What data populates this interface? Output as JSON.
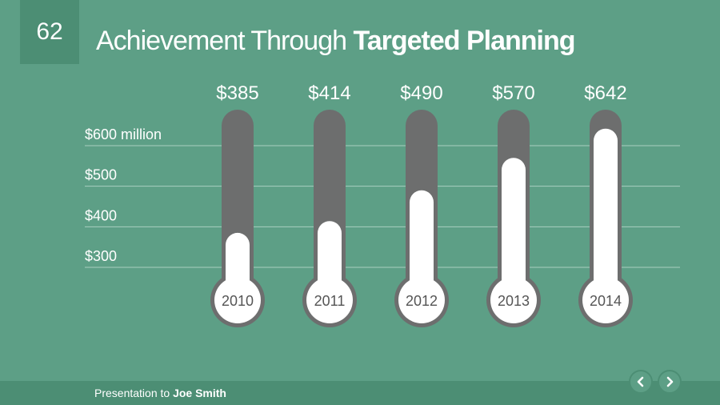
{
  "slide": {
    "page_number": "62",
    "title_light": "Achievement Through ",
    "title_bold": "Targeted Planning"
  },
  "footer": {
    "prefix": "Presentation to ",
    "name": "Joe Smith"
  },
  "nav": {
    "prev_icon": "chevron-left-icon",
    "next_icon": "chevron-right-icon"
  },
  "colors": {
    "background": "#5d9f86",
    "dark_band": "#4c8e74",
    "tube": "#6d6e6e",
    "fill": "#ffffff",
    "grid": "#a9cfc0"
  },
  "chart_data": {
    "type": "bar",
    "style": "thermometer",
    "categories": [
      "2010",
      "2011",
      "2012",
      "2013",
      "2014"
    ],
    "values": [
      385,
      414,
      490,
      570,
      642
    ],
    "value_labels": [
      "$385",
      "$414",
      "$490",
      "$570",
      "$642"
    ],
    "ytick_values": [
      300,
      400,
      500,
      600
    ],
    "ytick_labels": [
      "$300",
      "$400",
      "$500",
      "$600 million"
    ],
    "grid": true,
    "ylim": [
      200,
      680
    ]
  }
}
